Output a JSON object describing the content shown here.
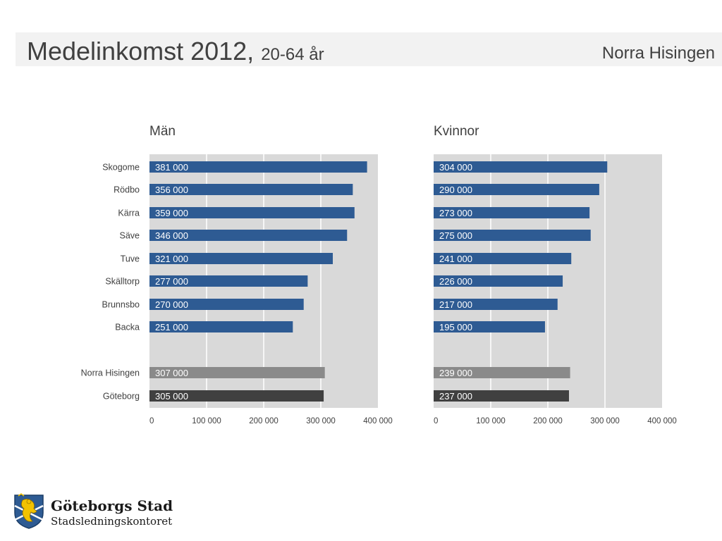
{
  "header": {
    "title": "Medelinkomst 2012,",
    "subtitle": "20-64 år",
    "region": "Norra Hisingen"
  },
  "footer": {
    "org_name": "Göteborgs Stad",
    "department": "Stadsledningskontoret",
    "logo_icon": "gothenburg-coat-of-arms-icon"
  },
  "colors": {
    "district_bar": "#2e5b93",
    "area_bar": "#8a8a8a",
    "city_bar": "#404040",
    "plot_bg": "#d9d9d9",
    "gridline": "#ffffff"
  },
  "chart_data": [
    {
      "type": "bar",
      "orientation": "horizontal",
      "title": "Män",
      "categories": [
        "Skogome",
        "Rödbo",
        "Kärra",
        "Säve",
        "Tuve",
        "Skälltorp",
        "Brunnsbo",
        "Backa",
        "Norra Hisingen",
        "Göteborg"
      ],
      "values": [
        381000,
        356000,
        359000,
        346000,
        321000,
        277000,
        270000,
        251000,
        307000,
        305000
      ],
      "labels": [
        "381 000",
        "356 000",
        "359 000",
        "346 000",
        "321 000",
        "277 000",
        "270 000",
        "251 000",
        "307 000",
        "305 000"
      ],
      "xlim": [
        0,
        400000
      ],
      "ticks": [
        0,
        100000,
        200000,
        300000,
        400000
      ],
      "tick_labels": [
        "0",
        "100 000",
        "200 000",
        "300 000",
        "400 000"
      ],
      "grid": true,
      "legend": "none"
    },
    {
      "type": "bar",
      "orientation": "horizontal",
      "title": "Kvinnor",
      "categories": [
        "Skogome",
        "Rödbo",
        "Kärra",
        "Säve",
        "Tuve",
        "Skälltorp",
        "Brunnsbo",
        "Backa",
        "Norra Hisingen",
        "Göteborg"
      ],
      "values": [
        304000,
        290000,
        273000,
        275000,
        241000,
        226000,
        217000,
        195000,
        239000,
        237000
      ],
      "labels": [
        "304 000",
        "290 000",
        "273 000",
        "275 000",
        "241 000",
        "226 000",
        "217 000",
        "195 000",
        "239 000",
        "237 000"
      ],
      "xlim": [
        0,
        400000
      ],
      "ticks": [
        0,
        100000,
        200000,
        300000,
        400000
      ],
      "tick_labels": [
        "0",
        "100 000",
        "200 000",
        "300 000",
        "400 000"
      ],
      "grid": true,
      "legend": "none"
    }
  ]
}
